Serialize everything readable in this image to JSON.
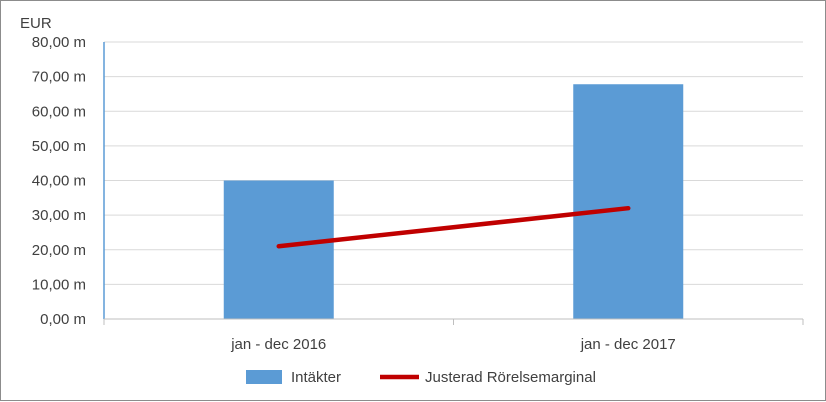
{
  "chart_data": {
    "type": "bar",
    "unit_label": "EUR",
    "categories": [
      "jan - dec 2016",
      "jan - dec 2017"
    ],
    "y_ticks": [
      "0,00 m",
      "10,00 m",
      "20,00 m",
      "30,00 m",
      "40,00 m",
      "50,00 m",
      "60,00 m",
      "70,00 m",
      "80,00 m"
    ],
    "ylim": [
      0,
      80
    ],
    "grid": true,
    "legend_position": "bottom",
    "series": [
      {
        "name": "Intäkter",
        "type": "bar",
        "color": "#5b9bd5",
        "values": [
          40.0,
          67.8
        ]
      },
      {
        "name": "Justerad Rörelsemarginal",
        "type": "line",
        "color": "#c00000",
        "values": [
          21.0,
          32.0
        ]
      }
    ]
  }
}
